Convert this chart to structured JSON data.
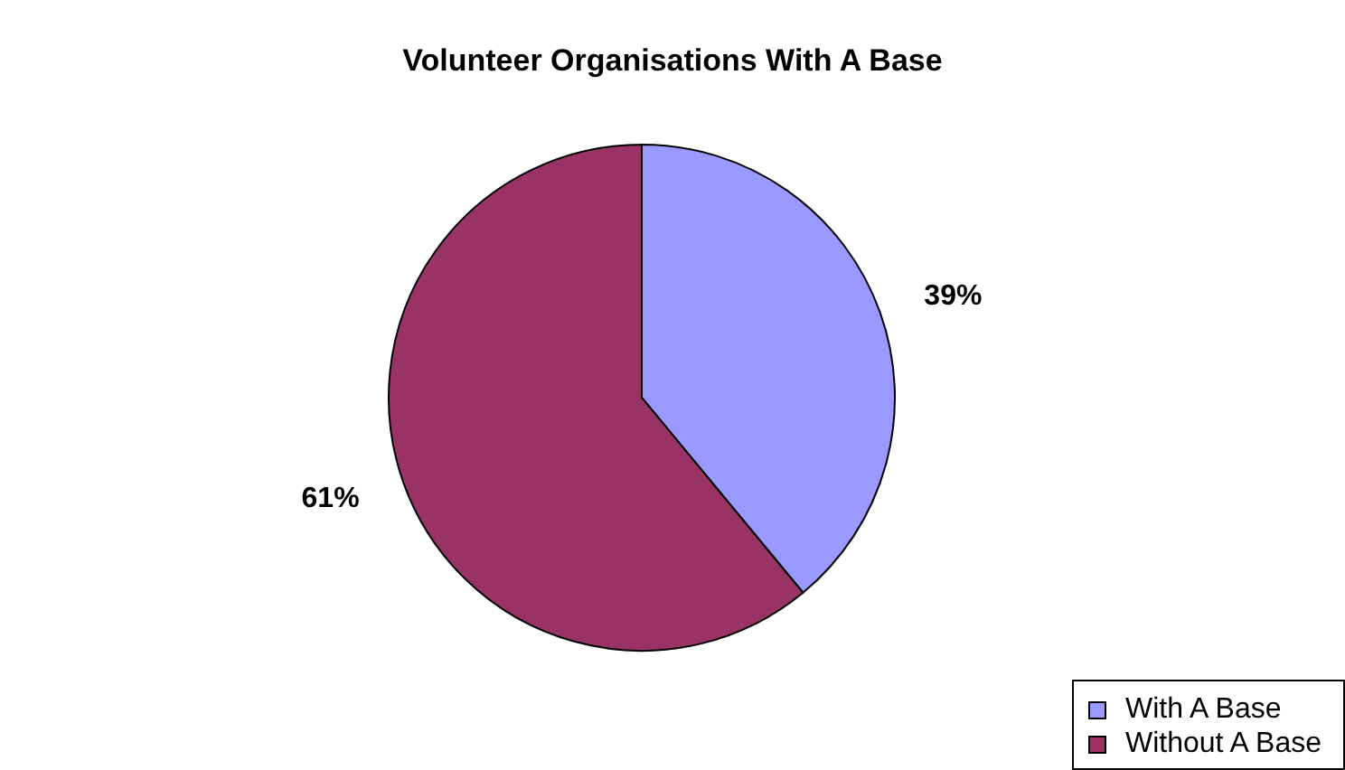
{
  "chart_data": {
    "type": "pie",
    "title": "Volunteer Organisations With A Base",
    "categories": [
      "With A Base",
      "Without A Base"
    ],
    "values": [
      39,
      61
    ],
    "colors": [
      "#9999ff",
      "#993366"
    ],
    "value_labels": [
      "39%",
      "61%"
    ],
    "legend": "bottom right"
  }
}
